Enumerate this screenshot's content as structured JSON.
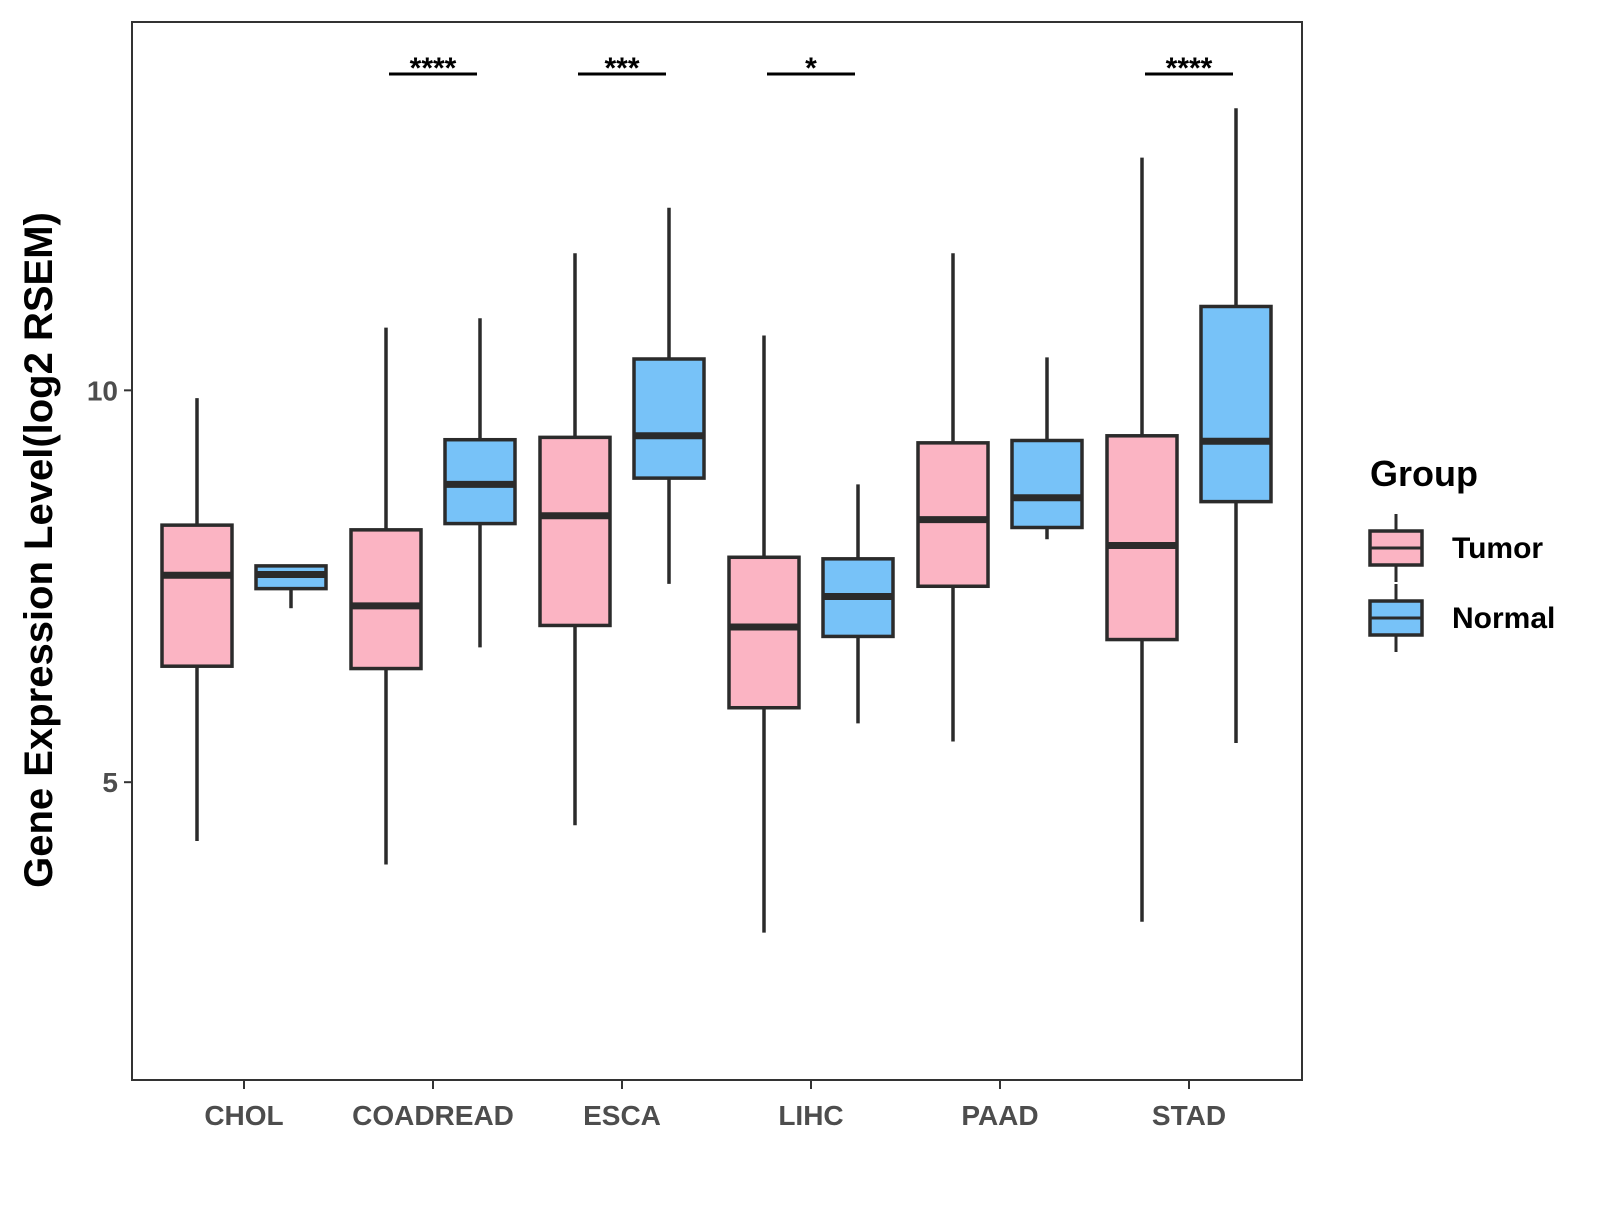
{
  "chart_data": {
    "type": "boxplot",
    "ylabel": "Gene Expression Level(log2 RSEM)",
    "xlabel": "",
    "ylim": [
      1.2,
      14.7
    ],
    "yticks": [
      5,
      10
    ],
    "categories": [
      "CHOL",
      "COADREAD",
      "ESCA",
      "LIHC",
      "PAAD",
      "STAD"
    ],
    "legend": {
      "title": "Group",
      "position": "right",
      "entries": [
        {
          "name": "Tumor",
          "color": "#FBB4C3"
        },
        {
          "name": "Normal",
          "color": "#77C2F8"
        }
      ]
    },
    "series": [
      {
        "name": "Tumor",
        "color": "#FBB4C3",
        "boxes": [
          {
            "category": "CHOL",
            "min": 4.25,
            "q1": 6.48,
            "median": 7.64,
            "q3": 8.28,
            "max": 9.9
          },
          {
            "category": "COADREAD",
            "min": 3.95,
            "q1": 6.45,
            "median": 7.25,
            "q3": 8.22,
            "max": 10.8
          },
          {
            "category": "ESCA",
            "min": 4.45,
            "q1": 7.0,
            "median": 8.4,
            "q3": 9.4,
            "max": 11.75
          },
          {
            "category": "LIHC",
            "min": 3.08,
            "q1": 5.95,
            "median": 6.98,
            "q3": 7.87,
            "max": 10.7
          },
          {
            "category": "PAAD",
            "min": 5.52,
            "q1": 7.5,
            "median": 8.35,
            "q3": 9.33,
            "max": 11.75
          },
          {
            "category": "STAD",
            "min": 3.22,
            "q1": 6.82,
            "median": 8.02,
            "q3": 9.42,
            "max": 12.97
          }
        ]
      },
      {
        "name": "Normal",
        "color": "#77C2F8",
        "boxes": [
          {
            "category": "CHOL",
            "min": 7.22,
            "q1": 7.47,
            "median": 7.65,
            "q3": 7.76,
            "max": 7.76
          },
          {
            "category": "COADREAD",
            "min": 6.72,
            "q1": 8.3,
            "median": 8.8,
            "q3": 9.37,
            "max": 10.92
          },
          {
            "category": "ESCA",
            "min": 7.53,
            "q1": 8.88,
            "median": 9.42,
            "q3": 10.4,
            "max": 12.33
          },
          {
            "category": "LIHC",
            "min": 5.75,
            "q1": 6.86,
            "median": 7.37,
            "q3": 7.85,
            "max": 8.8
          },
          {
            "category": "PAAD",
            "min": 8.1,
            "q1": 8.25,
            "median": 8.63,
            "q3": 9.36,
            "max": 10.42
          },
          {
            "category": "STAD",
            "min": 5.5,
            "q1": 8.58,
            "median": 9.35,
            "q3": 11.07,
            "max": 13.6
          }
        ]
      }
    ],
    "significance": [
      {
        "category": "COADREAD",
        "label": "****"
      },
      {
        "category": "ESCA",
        "label": "***"
      },
      {
        "category": "LIHC",
        "label": "*"
      },
      {
        "category": "STAD",
        "label": "****"
      }
    ]
  }
}
